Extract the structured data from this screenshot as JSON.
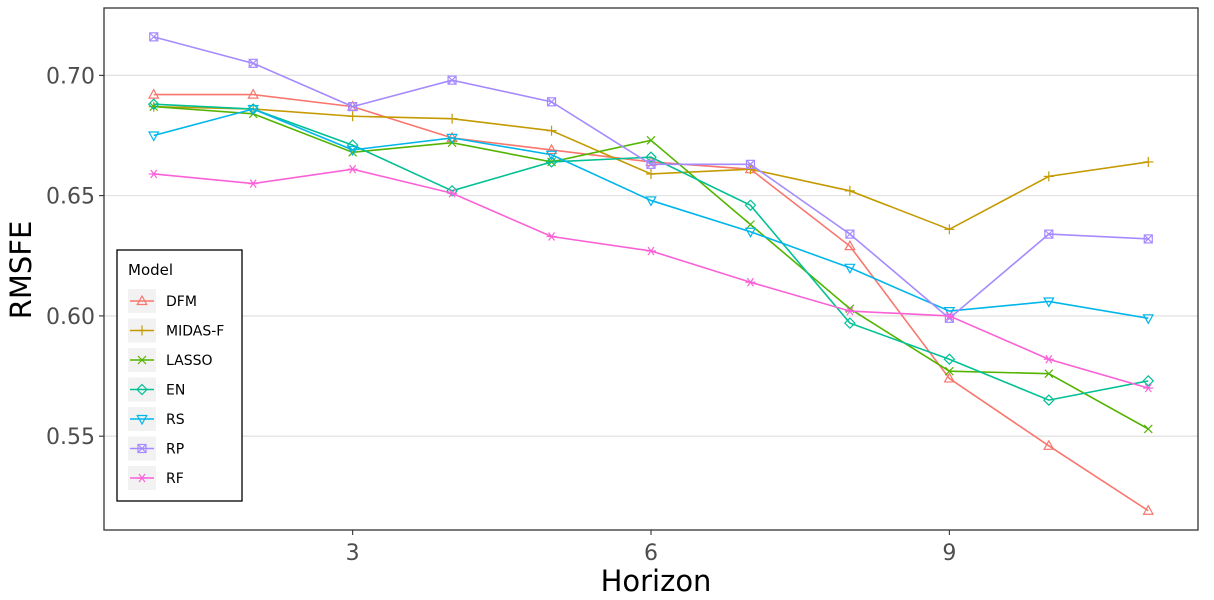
{
  "chart_data": {
    "type": "line",
    "xlabel": "Horizon",
    "ylabel": "RMSFE",
    "x": [
      1,
      2,
      3,
      4,
      5,
      6,
      7,
      8,
      9,
      10,
      11
    ],
    "xticks": [
      3,
      6,
      9
    ],
    "yticks": [
      0.55,
      0.6,
      0.65,
      0.7
    ],
    "ytick_labels": [
      "0.55",
      "0.60",
      "0.65",
      "0.70"
    ],
    "xlim": [
      0.5,
      11.5
    ],
    "ylim": [
      0.511,
      0.728
    ],
    "grid": "horizontal",
    "legend": {
      "title": "Model",
      "position": "left"
    },
    "series": [
      {
        "name": "DFM",
        "color": "#F8766D",
        "marker": "triangle-up",
        "values": [
          0.692,
          0.692,
          0.687,
          0.674,
          0.669,
          0.664,
          0.661,
          0.629,
          0.574,
          0.546,
          0.519
        ]
      },
      {
        "name": "MIDAS-F",
        "color": "#C49A00",
        "marker": "plus",
        "values": [
          0.687,
          0.686,
          0.683,
          0.682,
          0.677,
          0.659,
          0.661,
          0.652,
          0.636,
          0.658,
          0.664
        ]
      },
      {
        "name": "LASSO",
        "color": "#53B400",
        "marker": "x",
        "values": [
          0.687,
          0.684,
          0.668,
          0.672,
          0.664,
          0.673,
          0.638,
          0.603,
          0.577,
          0.576,
          0.553
        ]
      },
      {
        "name": "EN",
        "color": "#00C094",
        "marker": "diamond",
        "values": [
          0.688,
          0.686,
          0.671,
          0.652,
          0.664,
          0.666,
          0.646,
          0.597,
          0.582,
          0.565,
          0.573
        ]
      },
      {
        "name": "RS",
        "color": "#00B6EB",
        "marker": "triangle-down",
        "values": [
          0.675,
          0.686,
          0.669,
          0.674,
          0.667,
          0.648,
          0.635,
          0.62,
          0.602,
          0.606,
          0.599
        ]
      },
      {
        "name": "RP",
        "color": "#A58AFF",
        "marker": "square-x",
        "values": [
          0.716,
          0.705,
          0.687,
          0.698,
          0.689,
          0.663,
          0.663,
          0.634,
          0.599,
          0.634,
          0.632
        ]
      },
      {
        "name": "RF",
        "color": "#FB61D7",
        "marker": "asterisk",
        "values": [
          0.659,
          0.655,
          0.661,
          0.651,
          0.633,
          0.627,
          0.614,
          0.602,
          0.6,
          0.582,
          0.57
        ]
      }
    ]
  }
}
